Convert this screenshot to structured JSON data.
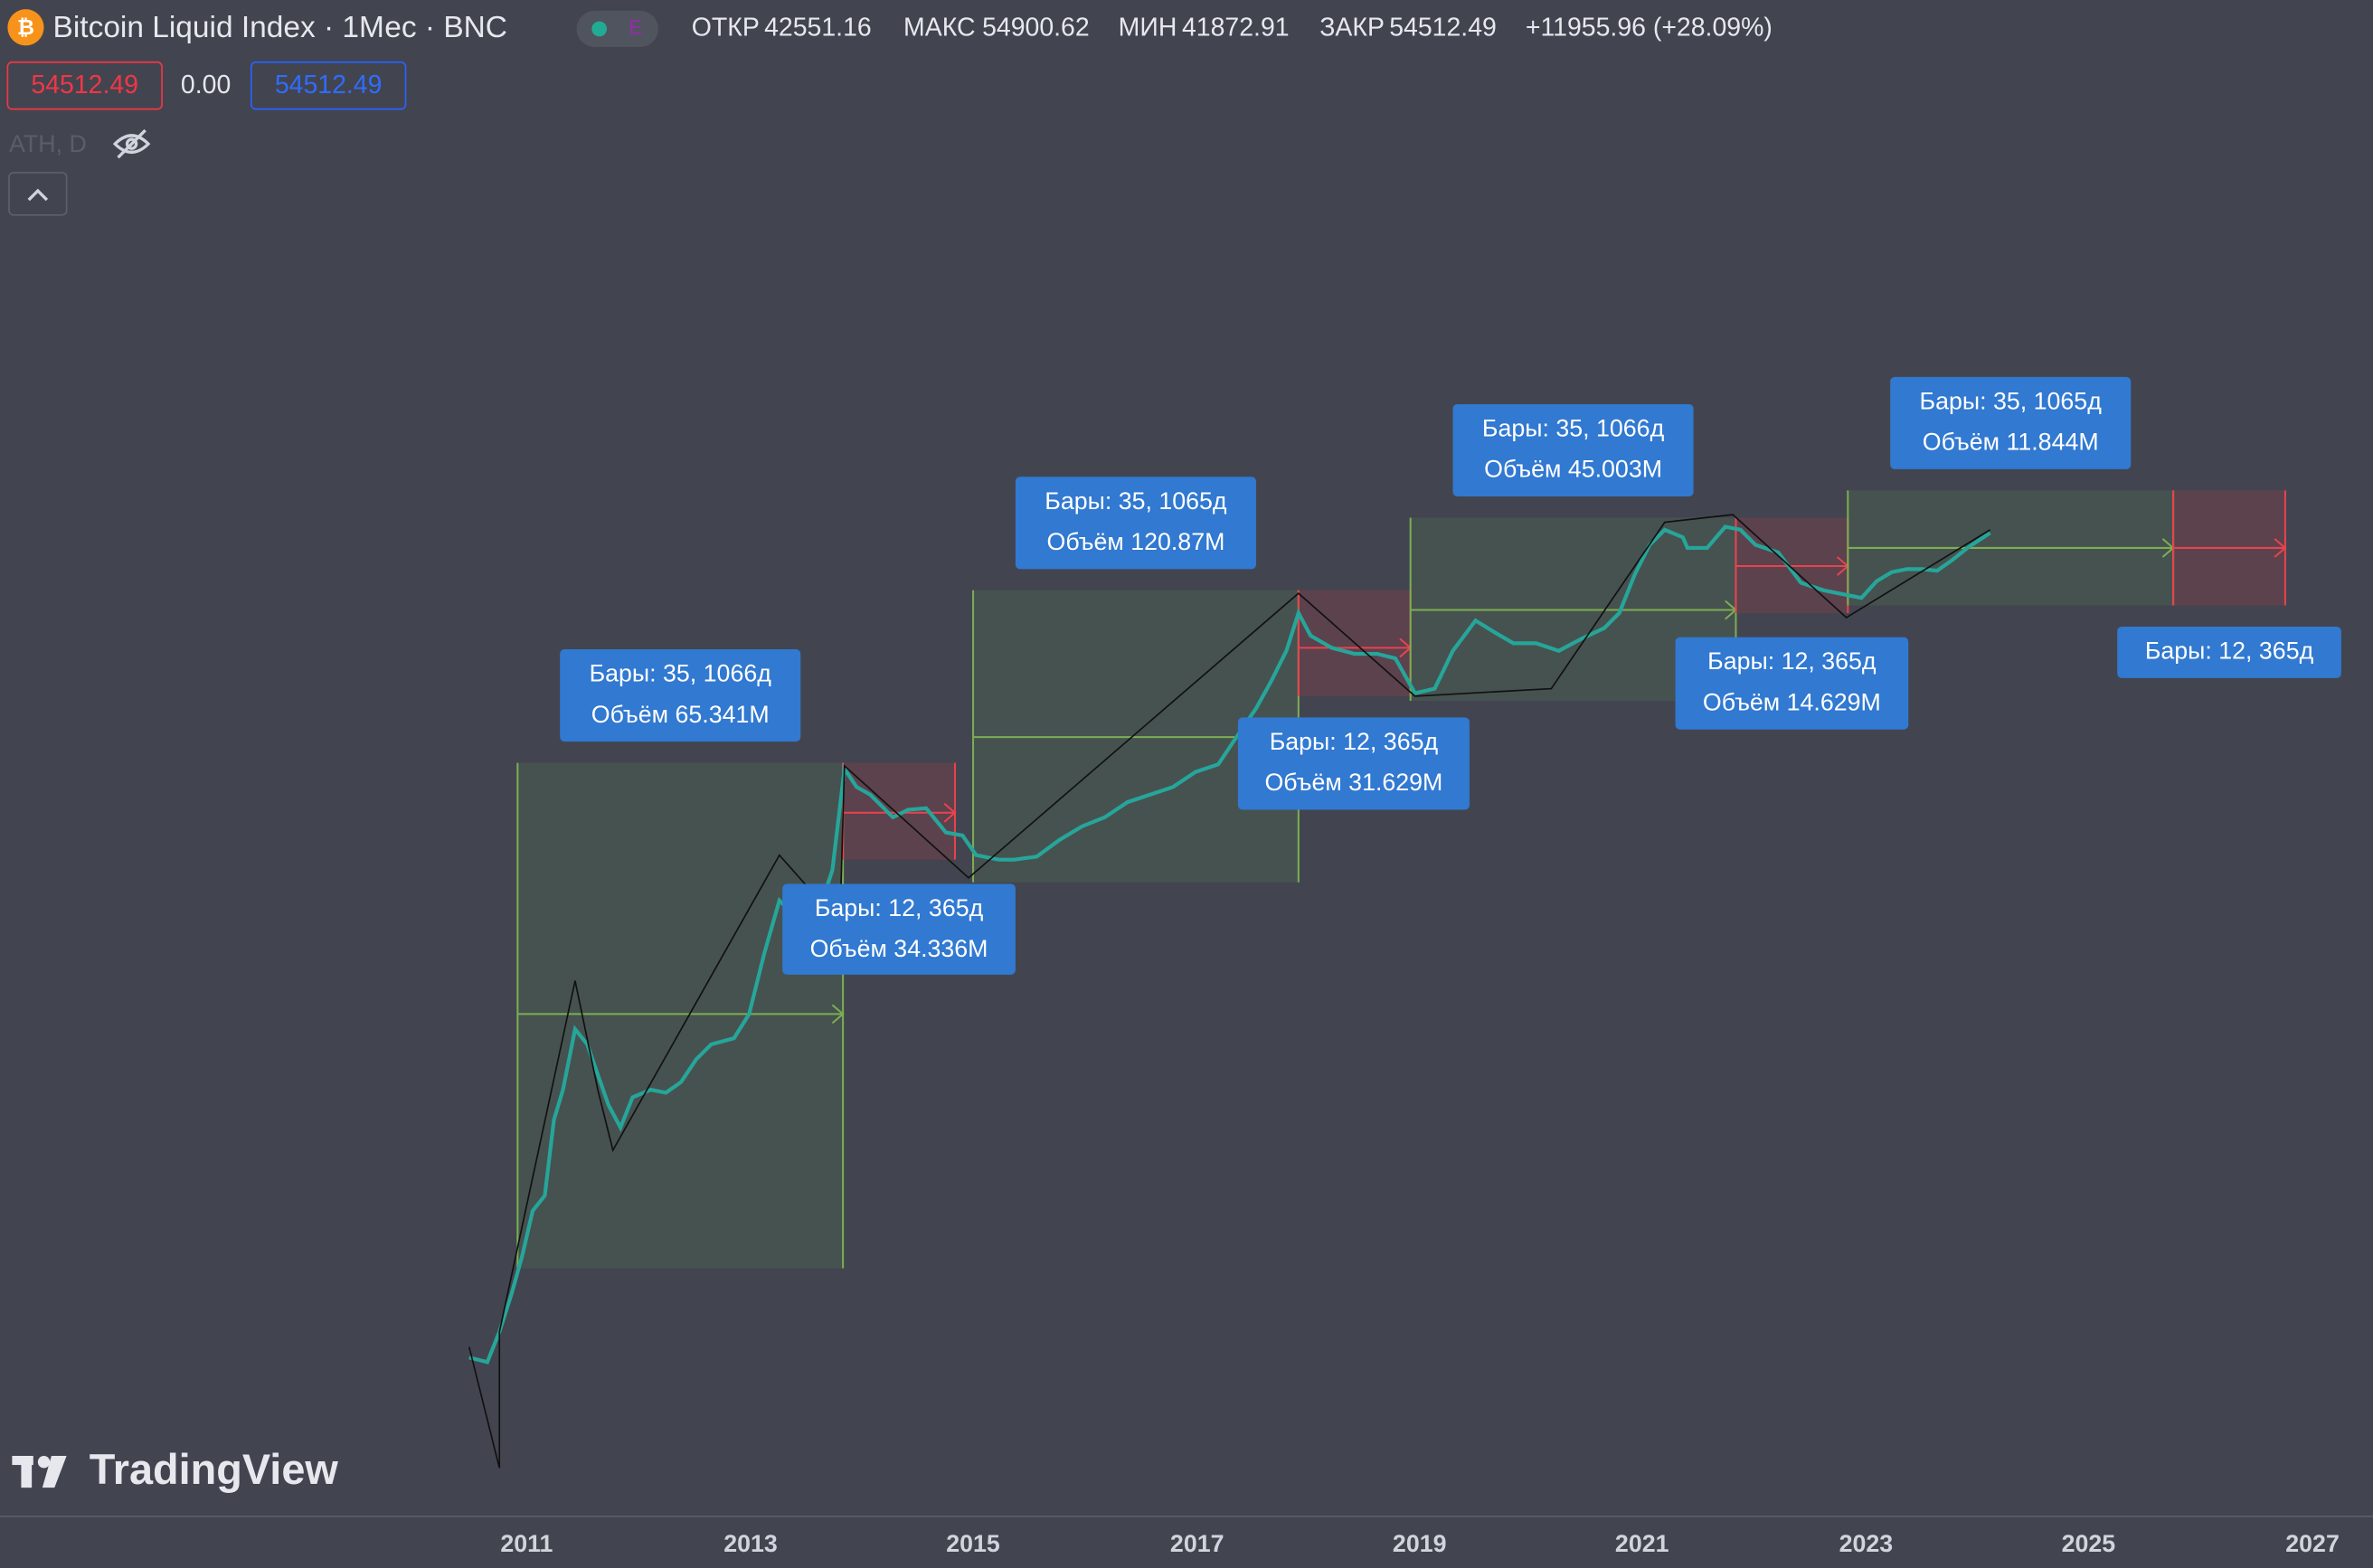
{
  "header": {
    "symbol": "Bitcoin Liquid Index · 1Мес · BNC",
    "badge": "E",
    "ohlc": [
      {
        "label": "ОТКР",
        "value": "42551.16"
      },
      {
        "label": "МАКС",
        "value": "54900.62"
      },
      {
        "label": "МИН",
        "value": "41872.91"
      },
      {
        "label": "ЗАКР",
        "value": "54512.49"
      }
    ],
    "change": "+11955.96 (+28.09%)"
  },
  "price_labels": {
    "bid": "54512.49",
    "spread": "0.00",
    "ask": "54512.49"
  },
  "indicator": "ATH, D",
  "annotations": [
    {
      "bars": "Бары: 35, 1066д",
      "volume": "Объём 65.341M"
    },
    {
      "bars": "Бары: 12, 365д",
      "volume": "Объём 34.336M"
    },
    {
      "bars": "Бары: 35, 1065д",
      "volume": "Объём 120.87M"
    },
    {
      "bars": "Бары: 12, 365д",
      "volume": "Объём 31.629M"
    },
    {
      "bars": "Бары: 35, 1066д",
      "volume": "Объём 45.003M"
    },
    {
      "bars": "Бары: 12, 365д",
      "volume": "Объём 14.629M"
    },
    {
      "bars": "Бары: 35, 1065д",
      "volume": "Объём 11.844M"
    },
    {
      "bars": "Бары: 12, 365д"
    }
  ],
  "x_axis": [
    "2011",
    "2013",
    "2015",
    "2017",
    "2019",
    "2021",
    "2023",
    "2025",
    "2027"
  ],
  "watermark": "TradingView"
}
